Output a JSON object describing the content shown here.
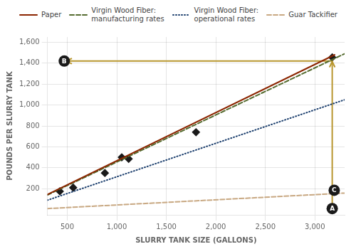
{
  "chart_data": {
    "type": "line",
    "xlabel": "SLURRY TANK SIZE (GALLONS)",
    "ylabel": "POUNDS PER SLURRY TANK",
    "xlim": [
      300,
      3300
    ],
    "ylim": [
      -50,
      1650
    ],
    "xticks": [
      500,
      {
        "value": 1000,
        "label": "1,000"
      },
      {
        "value": 1500,
        "label": "1,500"
      },
      {
        "value": 2000,
        "label": "2,000"
      },
      {
        "value": 2500,
        "label": "2,500"
      },
      {
        "value": 3000,
        "label": "3,000"
      }
    ],
    "yticks": [
      200,
      400,
      600,
      800,
      {
        "value": 1000,
        "label": "1,000"
      },
      {
        "value": 1200,
        "label": "1,200"
      },
      {
        "value": 1400,
        "label": "1,400"
      },
      {
        "value": 1600,
        "label": "1,600"
      }
    ],
    "grid": true,
    "legend": "top",
    "series": [
      {
        "name": "Paper",
        "color": "#8B2500",
        "line_style": "solid",
        "x": [
          300,
          3200
        ],
        "values": [
          145,
          1480
        ]
      },
      {
        "name": "Virgin Wood Fiber:\nmanufacturing rates",
        "color": "#556B2F",
        "line_style": "dashed",
        "x": [
          300,
          3300
        ],
        "values": [
          140,
          1490
        ]
      },
      {
        "name": "Virgin Wood Fiber:\noperational rates",
        "color": "#1C3F6E",
        "line_style": "dotted",
        "x": [
          300,
          3300
        ],
        "values": [
          90,
          1050
        ]
      },
      {
        "name": "Guar Tackifier",
        "color": "#C8A882",
        "line_style": "dashed",
        "x": [
          300,
          3300
        ],
        "values": [
          10,
          158
        ]
      },
      {
        "type": "scatter",
        "color": "#1A1A1A",
        "marker": "diamond",
        "x": [
          425,
          560,
          880,
          1050,
          1120,
          1800,
          3175
        ],
        "values": [
          175,
          210,
          350,
          500,
          485,
          740,
          1455
        ]
      },
      {
        "type": "line",
        "color": "#B8962E",
        "line_style": "solid",
        "marker": "arrow",
        "x": [
          3175,
          3175
        ],
        "values": [
          10,
          1415
        ]
      },
      {
        "type": "line",
        "color": "#B8962E",
        "line_style": "solid",
        "marker": "arrow",
        "x": [
          3175,
          490
        ],
        "values": [
          1420,
          1420
        ]
      }
    ],
    "annotations": [
      {
        "text": "A",
        "x": 3175,
        "y": 10
      },
      {
        "text": "B",
        "x": 470,
        "y": 1420
      },
      {
        "text": "C",
        "x": 3195,
        "y": 185
      }
    ]
  }
}
